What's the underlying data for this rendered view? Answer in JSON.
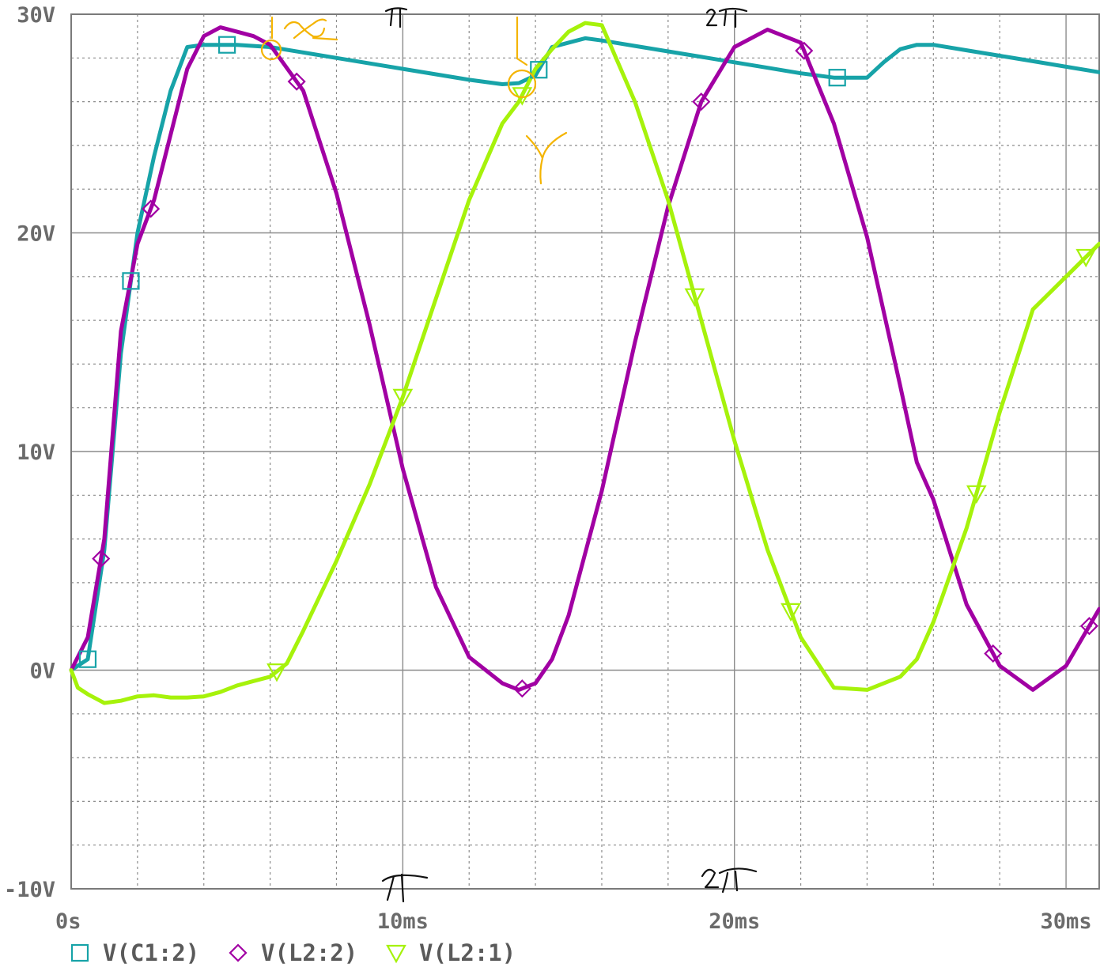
{
  "chart_data": {
    "type": "line",
    "x_unit": "ms",
    "xlim": [
      0,
      31
    ],
    "ylim": [
      -10,
      30
    ],
    "x_ticks": [
      {
        "value": 0,
        "label": "0s"
      },
      {
        "value": 10,
        "label": "10ms"
      },
      {
        "value": 20,
        "label": "20ms"
      },
      {
        "value": 30,
        "label": "30ms"
      }
    ],
    "y_ticks": [
      {
        "value": 30,
        "label": "30V"
      },
      {
        "value": 20,
        "label": "20V"
      },
      {
        "value": 10,
        "label": "10V"
      },
      {
        "value": 0,
        "label": "0V"
      },
      {
        "value": -10,
        "label": "-10V"
      }
    ],
    "grid": true,
    "legend_position": "bottom-left",
    "series": [
      {
        "name": "V(C1:2)",
        "color": "#17a3a8",
        "marker": "square",
        "x": [
          0,
          0.5,
          1,
          1.5,
          2,
          2.5,
          3,
          3.5,
          4,
          4.5,
          5,
          6,
          7,
          8,
          9,
          10,
          11,
          12,
          13,
          13.5,
          14,
          14.5,
          15,
          15.5,
          16,
          17,
          18,
          19,
          20,
          21,
          22,
          23,
          24,
          24.5,
          25,
          25.5,
          26,
          27,
          28,
          29,
          30,
          31
        ],
        "y": [
          0,
          0.5,
          5.5,
          14.5,
          20.0,
          23.5,
          26.5,
          28.5,
          28.6,
          28.6,
          28.6,
          28.5,
          28.25,
          28.0,
          27.75,
          27.5,
          27.25,
          27.0,
          26.8,
          26.85,
          27.2,
          28.5,
          28.7,
          28.9,
          28.8,
          28.55,
          28.3,
          28.05,
          27.8,
          27.55,
          27.3,
          27.1,
          27.1,
          27.8,
          28.4,
          28.6,
          28.6,
          28.35,
          28.1,
          27.85,
          27.6,
          27.35
        ]
      },
      {
        "name": "V(L2:2)",
        "color": "#a100a3",
        "marker": "diamond",
        "x": [
          0,
          0.5,
          1,
          1.5,
          2,
          2.5,
          3,
          3.5,
          4,
          4.5,
          5,
          5.5,
          6,
          7,
          8,
          9,
          10,
          11,
          12,
          13,
          13.5,
          14,
          14.5,
          15,
          16,
          17,
          18,
          19,
          20,
          21,
          22,
          23,
          24,
          25,
          25.5,
          26,
          27,
          28,
          29,
          30,
          31
        ],
        "y": [
          0,
          1.5,
          6.0,
          15.5,
          19.5,
          21.5,
          24.5,
          27.5,
          29.0,
          29.4,
          29.2,
          29.0,
          28.6,
          26.5,
          21.8,
          15.8,
          9.2,
          3.8,
          0.6,
          -0.6,
          -0.9,
          -0.6,
          0.5,
          2.5,
          8.2,
          15.0,
          21.2,
          26.0,
          28.5,
          29.3,
          28.7,
          25.0,
          19.8,
          13.0,
          9.5,
          7.8,
          3.0,
          0.2,
          -0.9,
          0.2,
          2.8
        ]
      },
      {
        "name": "V(L2:1)",
        "color": "#a6f20b",
        "marker": "triangle-down",
        "x": [
          0,
          0.2,
          0.5,
          1,
          1.5,
          2,
          2.5,
          3,
          3.5,
          4,
          4.5,
          5,
          5.5,
          6,
          6.5,
          7,
          8,
          9,
          10,
          11,
          12,
          13,
          13.5,
          14,
          14.5,
          15,
          15.5,
          16,
          17,
          18,
          19,
          20,
          21,
          22,
          23,
          24,
          25,
          25.5,
          26,
          27,
          28,
          29,
          30,
          31
        ],
        "y": [
          0,
          -0.8,
          -1.1,
          -1.5,
          -1.4,
          -1.2,
          -1.15,
          -1.25,
          -1.25,
          -1.2,
          -1.0,
          -0.7,
          -0.5,
          -0.3,
          0.3,
          1.8,
          5.0,
          8.5,
          12.5,
          17.0,
          21.5,
          25.0,
          26.0,
          27.5,
          28.4,
          29.2,
          29.6,
          29.5,
          26.0,
          21.5,
          16.0,
          10.5,
          5.5,
          1.5,
          -0.8,
          -0.9,
          -0.3,
          0.5,
          2.2,
          6.5,
          11.8,
          16.5,
          18.0,
          19.5
        ]
      }
    ],
    "annotations": [
      "π",
      "2π",
      "π",
      "2π",
      "∝",
      "γ"
    ]
  }
}
